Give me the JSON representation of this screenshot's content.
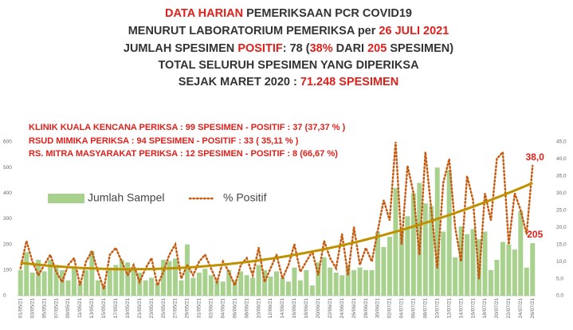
{
  "header": {
    "line1": [
      "DATA HARIAN",
      " PEMERIKSAAN PCR COVID19"
    ],
    "line2": [
      "MENURUT LABORATORIUM PEMERIKSA per ",
      "26 JULI 2021"
    ],
    "line3": [
      "JUMLAH SPESIMEN ",
      "POSITIF",
      ":  78 (",
      "38%",
      " DARI ",
      "205",
      " SPESIMEN)"
    ],
    "line4": "TOTAL SELURUH SPESIMEN YANG DIPERIKSA",
    "line5": [
      "SEJAK MARET 2020 : ",
      "71.248 SPESIMEN"
    ]
  },
  "chart_data": {
    "type": "bar-line",
    "annotations": [
      "KLINIK KUALA KENCANA PERIKSA : 99 SPESIMEN - POSITIF : 37 (37,37 % )",
      "RSUD MIMIKA PERIKSA                 :  94  SPESIMEN - POSITIF : 33 ( 35,11 % )",
      "RS. MITRA MASYARAKAT PERIKSA : 12 SPESIMEN - POSITIF : 8 (66,67 %)"
    ],
    "categories": [
      "01/05/21",
      null,
      "03/05/21",
      null,
      "05/05/21",
      null,
      "07/05/21",
      null,
      "09/05/21",
      null,
      "11/05/21",
      null,
      "13/05/21",
      null,
      "15/05/21",
      null,
      "17/05/21",
      null,
      "19/05/21",
      null,
      "21/05/21",
      null,
      "23/05/21",
      null,
      "25/05/21",
      null,
      "27/05/21",
      null,
      "29/05/21",
      null,
      "31/05/21",
      null,
      "02/06/21",
      null,
      "04/06/21",
      null,
      "06/06/21",
      null,
      "08/06/21",
      null,
      "10/06/21",
      null,
      "12/06/21",
      null,
      "14/06/21",
      null,
      "16/06/21",
      null,
      "18/06/21",
      null,
      "20/06/21",
      null,
      "22/06/21",
      null,
      "24/06/21",
      null,
      "26/06/21",
      null,
      "28/06/21",
      null,
      "30/06/21",
      null,
      "02/07/21",
      null,
      "04/07/21",
      null,
      "06/07/21",
      null,
      "08/07/21",
      null,
      "10/07/21",
      null,
      "12/07/21",
      null,
      "14/07/21",
      null,
      "16/07/21",
      null,
      "18/07/21",
      null,
      "20/07/21",
      null,
      "22/07/21",
      null,
      "24/07/21",
      null,
      "26/07/21"
    ],
    "series": [
      {
        "name": "Jumlah Sampel",
        "type": "bar",
        "color": "#a9d18e",
        "values": [
          100,
          170,
          90,
          140,
          95,
          140,
          120,
          100,
          60,
          110,
          50,
          100,
          175,
          60,
          40,
          110,
          120,
          140,
          130,
          110,
          90,
          60,
          70,
          50,
          140,
          135,
          145,
          60,
          200,
          70,
          90,
          105,
          80,
          60,
          55,
          100,
          60,
          95,
          80,
          70,
          120,
          100,
          75,
          95,
          70,
          55,
          110,
          60,
          100,
          40,
          130,
          150,
          110,
          90,
          80,
          120,
          100,
          110,
          100,
          100,
          250,
          190,
          230,
          420,
          260,
          310,
          400,
          440,
          360,
          350,
          500,
          250,
          490,
          150,
          270,
          240,
          260,
          220,
          250,
          100,
          140,
          210,
          200,
          180,
          330,
          110,
          205
        ],
        "value_labels": [
          null,
          null,
          null,
          null,
          null,
          null,
          null,
          null,
          null,
          null,
          null,
          null,
          null,
          null,
          null,
          null,
          null,
          null,
          null,
          null,
          null,
          null,
          null,
          null,
          null,
          null,
          null,
          null,
          null,
          null,
          null,
          null,
          null,
          null,
          null,
          null,
          null,
          null,
          null,
          null,
          null,
          null,
          null,
          null,
          null,
          null,
          null,
          null,
          null,
          null,
          null,
          null,
          null,
          null,
          null,
          null,
          null,
          null,
          null,
          null,
          null,
          null,
          null,
          null,
          null,
          null,
          null,
          null,
          null,
          null,
          null,
          null,
          null,
          null,
          null,
          null,
          null,
          null,
          null,
          null,
          null,
          null,
          null,
          null,
          null,
          null,
          "205"
        ]
      },
      {
        "name": "% Positif",
        "type": "line",
        "axis": "y2",
        "color": "#c55a11",
        "values": [
          8,
          16,
          10,
          6,
          9,
          12,
          7,
          4,
          9,
          11,
          3,
          10,
          13,
          7,
          2,
          12,
          14,
          10,
          6,
          9,
          4,
          8,
          11,
          3,
          7,
          12,
          15,
          5,
          9,
          6,
          10,
          12,
          8,
          4,
          10,
          7,
          3,
          9,
          11,
          6,
          14,
          4,
          8,
          12,
          5,
          9,
          15,
          7,
          10,
          13,
          6,
          16,
          11,
          8,
          18,
          6,
          20,
          9,
          14,
          10,
          19,
          28,
          22,
          45,
          15,
          38,
          30,
          12,
          42,
          25,
          8,
          33,
          40,
          20,
          10,
          35,
          28,
          5,
          30,
          22,
          40,
          42,
          15,
          30,
          25,
          18,
          38
        ],
        "value_labels": [
          null,
          null,
          null,
          null,
          null,
          null,
          null,
          null,
          null,
          null,
          null,
          null,
          null,
          null,
          null,
          null,
          null,
          null,
          null,
          null,
          null,
          null,
          null,
          null,
          null,
          null,
          null,
          null,
          null,
          null,
          null,
          null,
          null,
          null,
          null,
          null,
          null,
          null,
          null,
          null,
          null,
          null,
          null,
          null,
          null,
          null,
          null,
          null,
          null,
          null,
          null,
          null,
          null,
          null,
          null,
          null,
          null,
          null,
          null,
          null,
          null,
          null,
          null,
          null,
          null,
          null,
          null,
          null,
          null,
          null,
          null,
          null,
          null,
          null,
          null,
          null,
          null,
          null,
          null,
          null,
          null,
          null,
          null,
          null,
          null,
          null,
          "38,0"
        ]
      }
    ],
    "trend_color": "#bf9000",
    "ylim": [
      0,
      600
    ],
    "yticks": [
      0,
      100,
      200,
      300,
      400,
      500,
      600
    ],
    "y2lim": [
      0,
      45
    ],
    "y2ticks": [
      {
        "value": 0,
        "label": "0,0"
      },
      {
        "value": 5,
        "label": "5,0"
      },
      {
        "value": 10,
        "label": "10,0"
      },
      {
        "value": 15,
        "label": "15,0"
      },
      {
        "value": 20,
        "label": "20,0"
      },
      {
        "value": 25,
        "label": "25,0"
      },
      {
        "value": 30,
        "label": "30,0"
      },
      {
        "value": 35,
        "label": "35,0"
      },
      {
        "value": 40,
        "label": "40,0"
      },
      {
        "value": 45,
        "label": "45,0"
      }
    ]
  }
}
